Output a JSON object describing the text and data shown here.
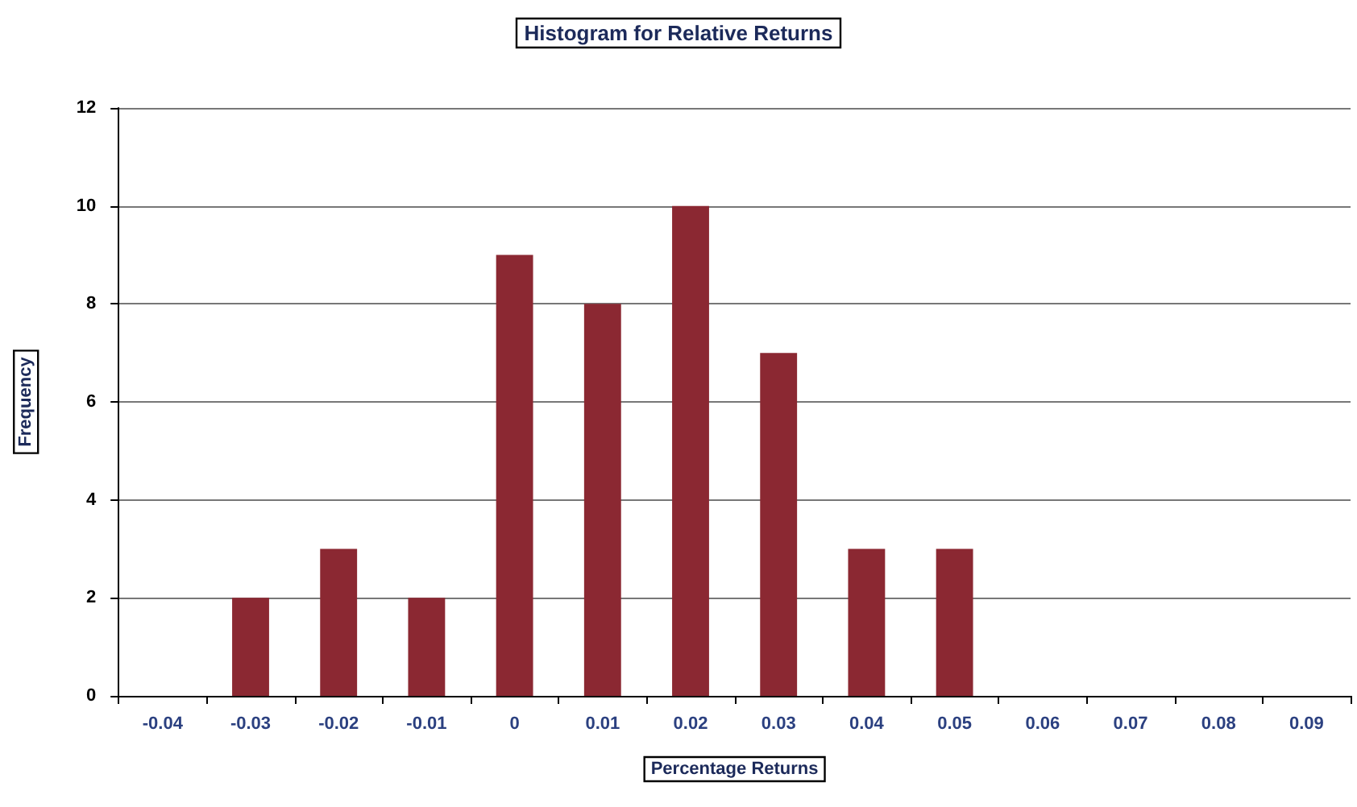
{
  "chart_data": {
    "type": "bar",
    "title": "Histogram for Relative Returns",
    "xlabel": "Percentage Returns",
    "ylabel": "Frequency",
    "categories": [
      "-0.04",
      "-0.03",
      "-0.02",
      "-0.01",
      "0",
      "0.01",
      "0.02",
      "0.03",
      "0.04",
      "0.05",
      "0.06",
      "0.07",
      "0.08",
      "0.09"
    ],
    "values": [
      0,
      2,
      3,
      2,
      9,
      8,
      10,
      7,
      3,
      3,
      0,
      0,
      0,
      0
    ],
    "color": "#8b2832",
    "ylim": [
      0,
      12
    ],
    "yticks": [
      0,
      2,
      4,
      6,
      8,
      10,
      12
    ],
    "grid": "y"
  }
}
